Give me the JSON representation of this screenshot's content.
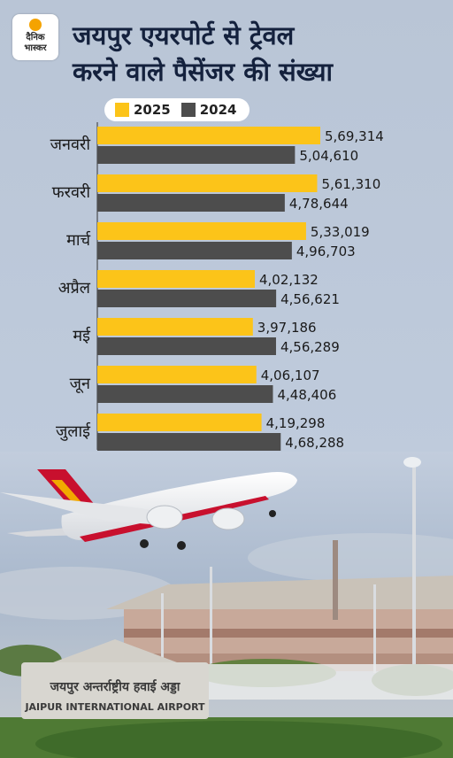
{
  "brand": {
    "line1": "दैनिक",
    "line2": "भास्कर"
  },
  "chart_data": {
    "type": "bar",
    "title": "जयपुर एयरपोर्ट से ट्रेवल करने वाले पैसेंजर की संख्या",
    "title_lines": [
      "जयपुर एयरपोर्ट से ट्रेवल",
      "करने वाले पैसेंजर की संख्या"
    ],
    "orientation": "horizontal",
    "categories": [
      "जनवरी",
      "फरवरी",
      "मार्च",
      "अप्रैल",
      "मई",
      "जून",
      "जुलाई"
    ],
    "series": [
      {
        "name": "2025",
        "color": "#fcc419",
        "values": [
          569314,
          561310,
          533019,
          402132,
          397186,
          406107,
          419298
        ],
        "labels": [
          "5,69,314",
          "5,61,310",
          "5,33,019",
          "4,02,132",
          "3,97,186",
          "4,06,107",
          "4,19,298"
        ]
      },
      {
        "name": "2024",
        "color": "#4d4d4d",
        "values": [
          504610,
          478644,
          496703,
          456621,
          456289,
          448406,
          468288
        ],
        "labels": [
          "5,04,610",
          "4,78,644",
          "4,96,703",
          "4,56,621",
          "4,56,289",
          "4,48,406",
          "4,68,288"
        ]
      }
    ],
    "legend_position": "top",
    "grid": false
  },
  "photo": {
    "sign_hindi": "जयपुर अन्तर्राष्ट्रीय हवाई अड्डा",
    "sign_english": "JAIPUR INTERNATIONAL AIRPORT"
  }
}
